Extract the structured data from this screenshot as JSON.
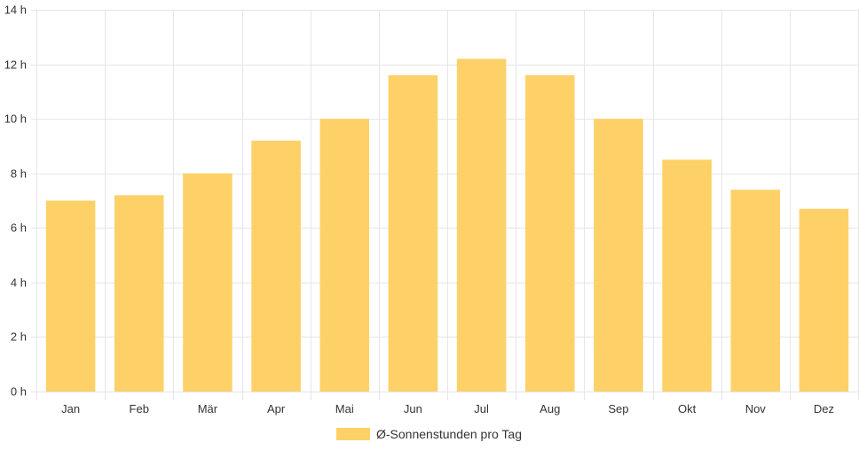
{
  "chart_data": {
    "type": "bar",
    "categories": [
      "Jan",
      "Feb",
      "Mär",
      "Apr",
      "Mai",
      "Jun",
      "Jul",
      "Aug",
      "Sep",
      "Okt",
      "Nov",
      "Dez"
    ],
    "series": [
      {
        "name": "Ø-Sonnenstunden pro Tag",
        "values": [
          7.0,
          7.2,
          8.0,
          9.2,
          10.0,
          11.6,
          12.2,
          11.6,
          10.0,
          8.5,
          7.4,
          6.7
        ],
        "color": "#fdd168"
      }
    ],
    "ylim": [
      0,
      14
    ],
    "yticks": [
      0,
      2,
      4,
      6,
      8,
      10,
      12,
      14
    ],
    "ytick_suffix": " h",
    "ytick_labels": [
      "0 h",
      "2 h",
      "4 h",
      "6 h",
      "8 h",
      "10 h",
      "12 h",
      "14 h"
    ],
    "grid": true,
    "legend_position": "bottom",
    "colors": {
      "grid": "#e6e6e6",
      "axis": "#cccccc",
      "text": "#333333"
    }
  }
}
